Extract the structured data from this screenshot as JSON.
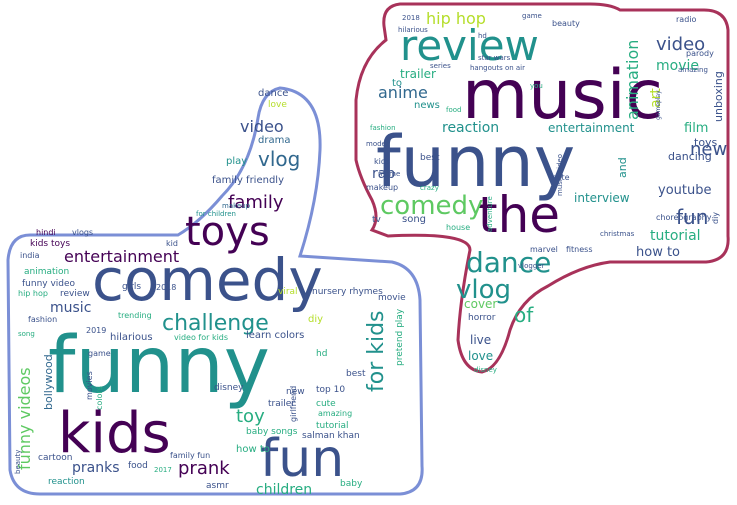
{
  "palette": {
    "like_outline": "#7b8fd6",
    "dislike_outline": "#a8325a",
    "dark_purple": "#440154",
    "indigo": "#3b528b",
    "teal": "#21918c",
    "green": "#27ad81",
    "lime": "#5ec962",
    "yellow": "#b5de2b",
    "blue": "#31688e"
  },
  "like_cloud": {
    "icon": "thumbs-up-icon",
    "words": [
      {
        "text": "funny",
        "color": "teal"
      },
      {
        "text": "comedy",
        "color": "indigo"
      },
      {
        "text": "kids",
        "color": "dark_purple"
      },
      {
        "text": "fun",
        "color": "indigo"
      },
      {
        "text": "toys",
        "color": "dark_purple"
      },
      {
        "text": "challenge",
        "color": "teal"
      },
      {
        "text": "entertainment",
        "color": "dark_purple"
      },
      {
        "text": "vlog",
        "color": "blue"
      },
      {
        "text": "family",
        "color": "dark_purple"
      },
      {
        "text": "video",
        "color": "indigo"
      },
      {
        "text": "for kids",
        "color": "teal"
      },
      {
        "text": "funny videos",
        "color": "lime"
      },
      {
        "text": "prank",
        "color": "dark_purple"
      },
      {
        "text": "pranks",
        "color": "indigo"
      },
      {
        "text": "toy",
        "color": "green"
      },
      {
        "text": "children",
        "color": "green"
      },
      {
        "text": "music",
        "color": "indigo"
      },
      {
        "text": "family friendly",
        "color": "indigo"
      },
      {
        "text": "bollywood",
        "color": "blue"
      },
      {
        "text": "dance",
        "color": "indigo"
      },
      {
        "text": "love",
        "color": "yellow"
      },
      {
        "text": "drama",
        "color": "blue"
      },
      {
        "text": "play",
        "color": "teal"
      },
      {
        "text": "makeup",
        "color": "blue"
      },
      {
        "text": "for children",
        "color": "teal"
      },
      {
        "text": "hindi",
        "color": "dark_purple"
      },
      {
        "text": "vlogs",
        "color": "indigo"
      },
      {
        "text": "kids toys",
        "color": "dark_purple"
      },
      {
        "text": "india",
        "color": "indigo"
      },
      {
        "text": "animation",
        "color": "green"
      },
      {
        "text": "funny video",
        "color": "indigo"
      },
      {
        "text": "review",
        "color": "indigo"
      },
      {
        "text": "hip hop",
        "color": "green"
      },
      {
        "text": "fashion",
        "color": "indigo"
      },
      {
        "text": "song",
        "color": "green"
      },
      {
        "text": "2019",
        "color": "indigo"
      },
      {
        "text": "girls",
        "color": "indigo"
      },
      {
        "text": "trending",
        "color": "green"
      },
      {
        "text": "hilarious",
        "color": "indigo"
      },
      {
        "text": "video for kids",
        "color": "green"
      },
      {
        "text": "learn colors",
        "color": "indigo"
      },
      {
        "text": "nursery rhymes",
        "color": "indigo"
      },
      {
        "text": "viral",
        "color": "yellow"
      },
      {
        "text": "diy",
        "color": "yellow"
      },
      {
        "text": "movie",
        "color": "indigo"
      },
      {
        "text": "pretend play",
        "color": "green"
      },
      {
        "text": "game",
        "color": "indigo"
      },
      {
        "text": "movies",
        "color": "indigo"
      },
      {
        "text": "colors",
        "color": "green"
      },
      {
        "text": "2018",
        "color": "indigo"
      },
      {
        "text": "disney",
        "color": "indigo"
      },
      {
        "text": "trailer",
        "color": "indigo"
      },
      {
        "text": "new",
        "color": "indigo"
      },
      {
        "text": "best",
        "color": "indigo"
      },
      {
        "text": "top 10",
        "color": "indigo"
      },
      {
        "text": "cute",
        "color": "green"
      },
      {
        "text": "amazing",
        "color": "green"
      },
      {
        "text": "tutorial",
        "color": "green"
      },
      {
        "text": "salman khan",
        "color": "indigo"
      },
      {
        "text": "baby songs",
        "color": "green"
      },
      {
        "text": "how to",
        "color": "green"
      },
      {
        "text": "family fun",
        "color": "indigo"
      },
      {
        "text": "food",
        "color": "indigo"
      },
      {
        "text": "asmr",
        "color": "indigo"
      },
      {
        "text": "baby",
        "color": "green"
      },
      {
        "text": "cartoon",
        "color": "indigo"
      },
      {
        "text": "reaction",
        "color": "teal"
      },
      {
        "text": "beauty",
        "color": "indigo"
      },
      {
        "text": "2017",
        "color": "green"
      },
      {
        "text": "girlfriend",
        "color": "indigo"
      },
      {
        "text": "kid",
        "color": "indigo"
      },
      {
        "text": "hd",
        "color": "green"
      }
    ]
  },
  "dislike_cloud": {
    "icon": "thumbs-down-icon",
    "words": [
      {
        "text": "music",
        "color": "dark_purple"
      },
      {
        "text": "funny",
        "color": "indigo"
      },
      {
        "text": "the",
        "color": "dark_purple"
      },
      {
        "text": "review",
        "color": "teal"
      },
      {
        "text": "comedy",
        "color": "lime"
      },
      {
        "text": "dance",
        "color": "teal"
      },
      {
        "text": "vlog",
        "color": "teal"
      },
      {
        "text": "of",
        "color": "green"
      },
      {
        "text": "fun",
        "color": "indigo"
      },
      {
        "text": "hip hop",
        "color": "yellow"
      },
      {
        "text": "video",
        "color": "indigo"
      },
      {
        "text": "movie",
        "color": "green"
      },
      {
        "text": "animation",
        "color": "green"
      },
      {
        "text": "art",
        "color": "yellow"
      },
      {
        "text": "anime",
        "color": "blue"
      },
      {
        "text": "news",
        "color": "teal"
      },
      {
        "text": "trailer",
        "color": "green"
      },
      {
        "text": "reaction",
        "color": "teal"
      },
      {
        "text": "entertainment",
        "color": "teal"
      },
      {
        "text": "film",
        "color": "green"
      },
      {
        "text": "new",
        "color": "indigo"
      },
      {
        "text": "unboxing",
        "color": "indigo"
      },
      {
        "text": "toys",
        "color": "indigo"
      },
      {
        "text": "dancing",
        "color": "indigo"
      },
      {
        "text": "youtube",
        "color": "indigo"
      },
      {
        "text": "tutorial",
        "color": "green"
      },
      {
        "text": "how to",
        "color": "indigo"
      },
      {
        "text": "rap",
        "color": "indigo"
      },
      {
        "text": "makeup",
        "color": "indigo"
      },
      {
        "text": "interview",
        "color": "teal"
      },
      {
        "text": "song",
        "color": "indigo"
      },
      {
        "text": "tv",
        "color": "indigo"
      },
      {
        "text": "cover",
        "color": "lime"
      },
      {
        "text": "horror",
        "color": "indigo"
      },
      {
        "text": "live",
        "color": "indigo"
      },
      {
        "text": "love",
        "color": "teal"
      },
      {
        "text": "best",
        "color": "indigo"
      },
      {
        "text": "crazy",
        "color": "green"
      },
      {
        "text": "and",
        "color": "teal"
      },
      {
        "text": "choreography",
        "color": "indigo"
      },
      {
        "text": "house",
        "color": "green"
      },
      {
        "text": "marvel",
        "color": "indigo"
      },
      {
        "text": "fitness",
        "color": "indigo"
      },
      {
        "text": "to",
        "color": "teal"
      },
      {
        "text": "fashion",
        "color": "green"
      },
      {
        "text": "kids",
        "color": "indigo"
      },
      {
        "text": "2018",
        "color": "indigo"
      },
      {
        "text": "hilarious",
        "color": "indigo"
      },
      {
        "text": "hd",
        "color": "indigo"
      },
      {
        "text": "star wars",
        "color": "indigo"
      },
      {
        "text": "game",
        "color": "indigo"
      },
      {
        "text": "beauty",
        "color": "indigo"
      },
      {
        "text": "radio",
        "color": "indigo"
      },
      {
        "text": "parody",
        "color": "indigo"
      },
      {
        "text": "amazing",
        "color": "indigo"
      },
      {
        "text": "gameplay",
        "color": "indigo"
      },
      {
        "text": "cute",
        "color": "indigo"
      },
      {
        "text": "music video",
        "color": "indigo"
      },
      {
        "text": "disney",
        "color": "green"
      },
      {
        "text": "meme",
        "color": "indigo"
      },
      {
        "text": "model",
        "color": "indigo"
      },
      {
        "text": "food",
        "color": "green"
      },
      {
        "text": "adventure",
        "color": "green"
      },
      {
        "text": "vlogger",
        "color": "indigo"
      },
      {
        "text": "christmas",
        "color": "indigo"
      },
      {
        "text": "diy",
        "color": "indigo"
      },
      {
        "text": "series",
        "color": "indigo"
      },
      {
        "text": "you",
        "color": "green"
      },
      {
        "text": "hangouts on air",
        "color": "indigo"
      }
    ]
  }
}
